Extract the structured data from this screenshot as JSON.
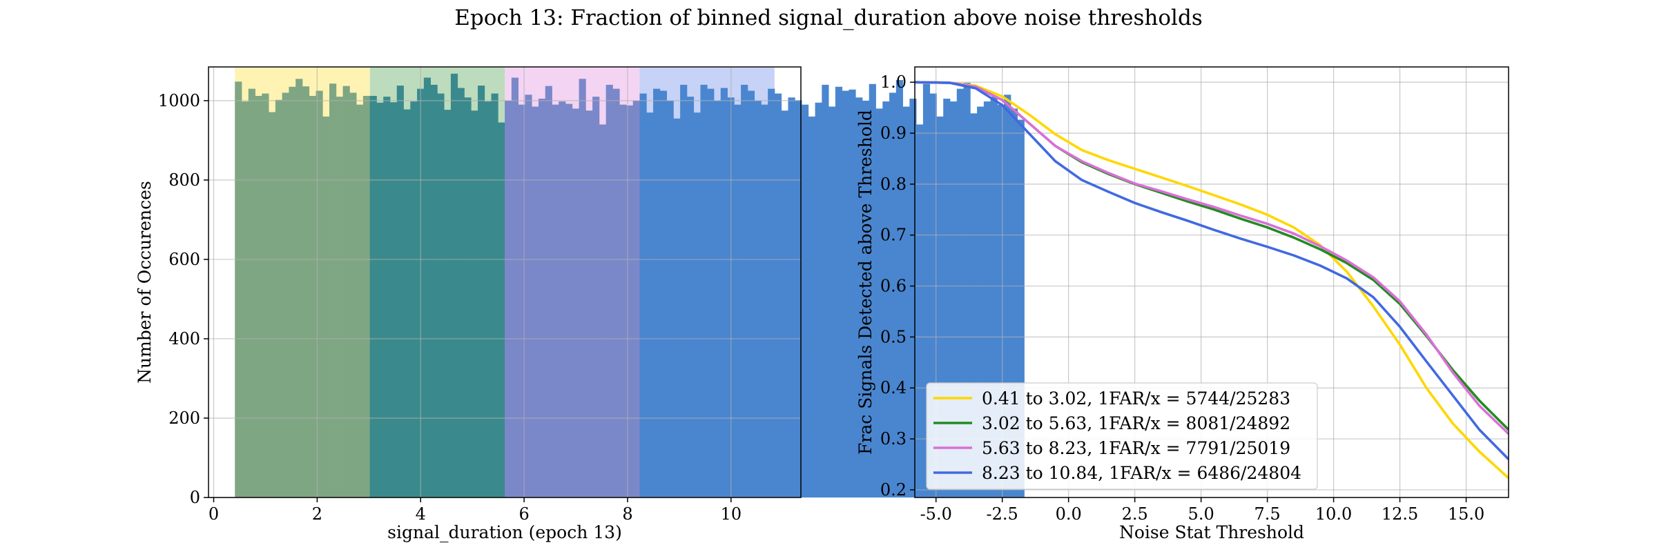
{
  "title": "Epoch 13: Fraction of binned signal_duration above noise thresholds",
  "chart_data": [
    {
      "type": "bar",
      "subtype": "histogram",
      "xlabel": "signal_duration (epoch 13)",
      "ylabel": "Number of Occurences",
      "xlim": [
        -0.1,
        11.35
      ],
      "ylim": [
        0,
        1085
      ],
      "xticks": [
        0,
        2,
        4,
        6,
        8,
        10
      ],
      "yticks": [
        0,
        200,
        400,
        600,
        800,
        1000
      ],
      "grid": true,
      "bin_start": 0.41,
      "bin_width": 0.1304,
      "counts": [
        1048,
        998,
        1030,
        1012,
        1018,
        971,
        1002,
        1020,
        1035,
        1055,
        1036,
        1012,
        1025,
        960,
        1043,
        1010,
        1037,
        1020,
        990,
        1012,
        1012,
        995,
        1010,
        996,
        1038,
        978,
        998,
        1030,
        1058,
        1040,
        1018,
        977,
        1068,
        1032,
        1008,
        975,
        1038,
        998,
        1018,
        945,
        1000,
        1058,
        990,
        1015,
        985,
        1005,
        1037,
        990,
        998,
        992,
        980,
        1055,
        975,
        1010,
        940,
        1040,
        1030,
        990,
        988,
        1000,
        1018,
        970,
        1030,
        1025,
        1000,
        955,
        1040,
        1010,
        970,
        1040,
        1030,
        1000,
        1032,
        1008,
        990,
        1040,
        1025,
        1000,
        990,
        1030,
        1018,
        975,
        1008,
        1001,
        990,
        960,
        995,
        1040,
        985,
        1035,
        1025,
        1028,
        1008,
        1000,
        1042,
        980,
        998,
        1020,
        1052,
        985,
        1005,
        940,
        1042,
        1018,
        960,
        1005,
        998,
        1030,
        1045,
        968,
        985,
        998,
        1010,
        990,
        1015,
        980,
        952
      ],
      "bins": [
        {
          "range": [
            0.41,
            3.02
          ],
          "color": "#FFD700"
        },
        {
          "range": [
            3.02,
            5.63
          ],
          "color": "#228B22"
        },
        {
          "range": [
            5.63,
            8.23
          ],
          "color": "#DA70D6"
        },
        {
          "range": [
            8.23,
            10.84
          ],
          "color": "#4169E1"
        }
      ]
    },
    {
      "type": "line",
      "xlabel": "Noise Stat Threshold",
      "ylabel": "Frac Signals Detected above Threshold",
      "xlim": [
        -5.8,
        16.6
      ],
      "ylim": [
        0.185,
        1.03
      ],
      "xticks": [
        -5.0,
        -2.5,
        0.0,
        2.5,
        5.0,
        7.5,
        10.0,
        12.5,
        15.0
      ],
      "yticks": [
        0.2,
        0.3,
        0.4,
        0.5,
        0.6,
        0.7,
        0.8,
        0.9,
        1.0
      ],
      "grid": true,
      "legend_position": "lower-left",
      "series": [
        {
          "name": "0.41 to 3.02, 1FAR/x = 5744/25283",
          "color": "#FFD700",
          "x": [
            -5.8,
            -4.5,
            -3.5,
            -2.5,
            -1.5,
            -0.5,
            0.5,
            1.5,
            2.5,
            3.5,
            4.5,
            5.5,
            6.5,
            7.5,
            8.5,
            9.5,
            10.5,
            11.5,
            12.5,
            13.5,
            14.5,
            15.5,
            16.6
          ],
          "y": [
            1.0,
            0.999,
            0.993,
            0.972,
            0.937,
            0.898,
            0.867,
            0.847,
            0.83,
            0.813,
            0.796,
            0.778,
            0.76,
            0.74,
            0.715,
            0.68,
            0.628,
            0.56,
            0.485,
            0.4,
            0.33,
            0.275,
            0.223
          ]
        },
        {
          "name": "3.02 to 5.63, 1FAR/x = 8081/24892",
          "color": "#228B22",
          "x": [
            -5.8,
            -4.5,
            -3.5,
            -2.5,
            -1.5,
            -0.5,
            0.5,
            1.5,
            2.5,
            3.5,
            4.5,
            5.5,
            6.5,
            7.5,
            8.5,
            9.5,
            10.5,
            11.5,
            12.5,
            13.5,
            14.5,
            15.5,
            16.6
          ],
          "y": [
            1.0,
            0.999,
            0.991,
            0.965,
            0.92,
            0.875,
            0.843,
            0.82,
            0.8,
            0.783,
            0.766,
            0.75,
            0.732,
            0.715,
            0.695,
            0.672,
            0.645,
            0.612,
            0.565,
            0.502,
            0.435,
            0.375,
            0.318
          ]
        },
        {
          "name": "5.63 to 8.23, 1FAR/x = 7791/25019",
          "color": "#DA70D6",
          "x": [
            -5.8,
            -4.5,
            -3.5,
            -2.5,
            -1.5,
            -0.5,
            0.5,
            1.5,
            2.5,
            3.5,
            4.5,
            5.5,
            6.5,
            7.5,
            8.5,
            9.5,
            10.5,
            11.5,
            12.5,
            13.5,
            14.5,
            15.5,
            16.6
          ],
          "y": [
            1.0,
            0.999,
            0.991,
            0.965,
            0.92,
            0.875,
            0.845,
            0.822,
            0.801,
            0.786,
            0.77,
            0.755,
            0.738,
            0.722,
            0.703,
            0.678,
            0.65,
            0.617,
            0.57,
            0.505,
            0.43,
            0.365,
            0.31
          ]
        },
        {
          "name": "8.23 to 10.84, 1FAR/x = 6486/24804",
          "color": "#4169E1",
          "x": [
            -5.8,
            -4.5,
            -3.5,
            -2.5,
            -1.5,
            -0.5,
            0.5,
            1.5,
            2.5,
            3.5,
            4.5,
            5.5,
            6.5,
            7.5,
            8.5,
            9.5,
            10.5,
            11.5,
            12.5,
            13.5,
            14.5,
            15.5,
            16.6
          ],
          "y": [
            1.0,
            0.999,
            0.988,
            0.955,
            0.9,
            0.845,
            0.808,
            0.785,
            0.763,
            0.745,
            0.728,
            0.71,
            0.693,
            0.677,
            0.66,
            0.64,
            0.615,
            0.578,
            0.52,
            0.452,
            0.385,
            0.318,
            0.26
          ]
        }
      ]
    }
  ]
}
